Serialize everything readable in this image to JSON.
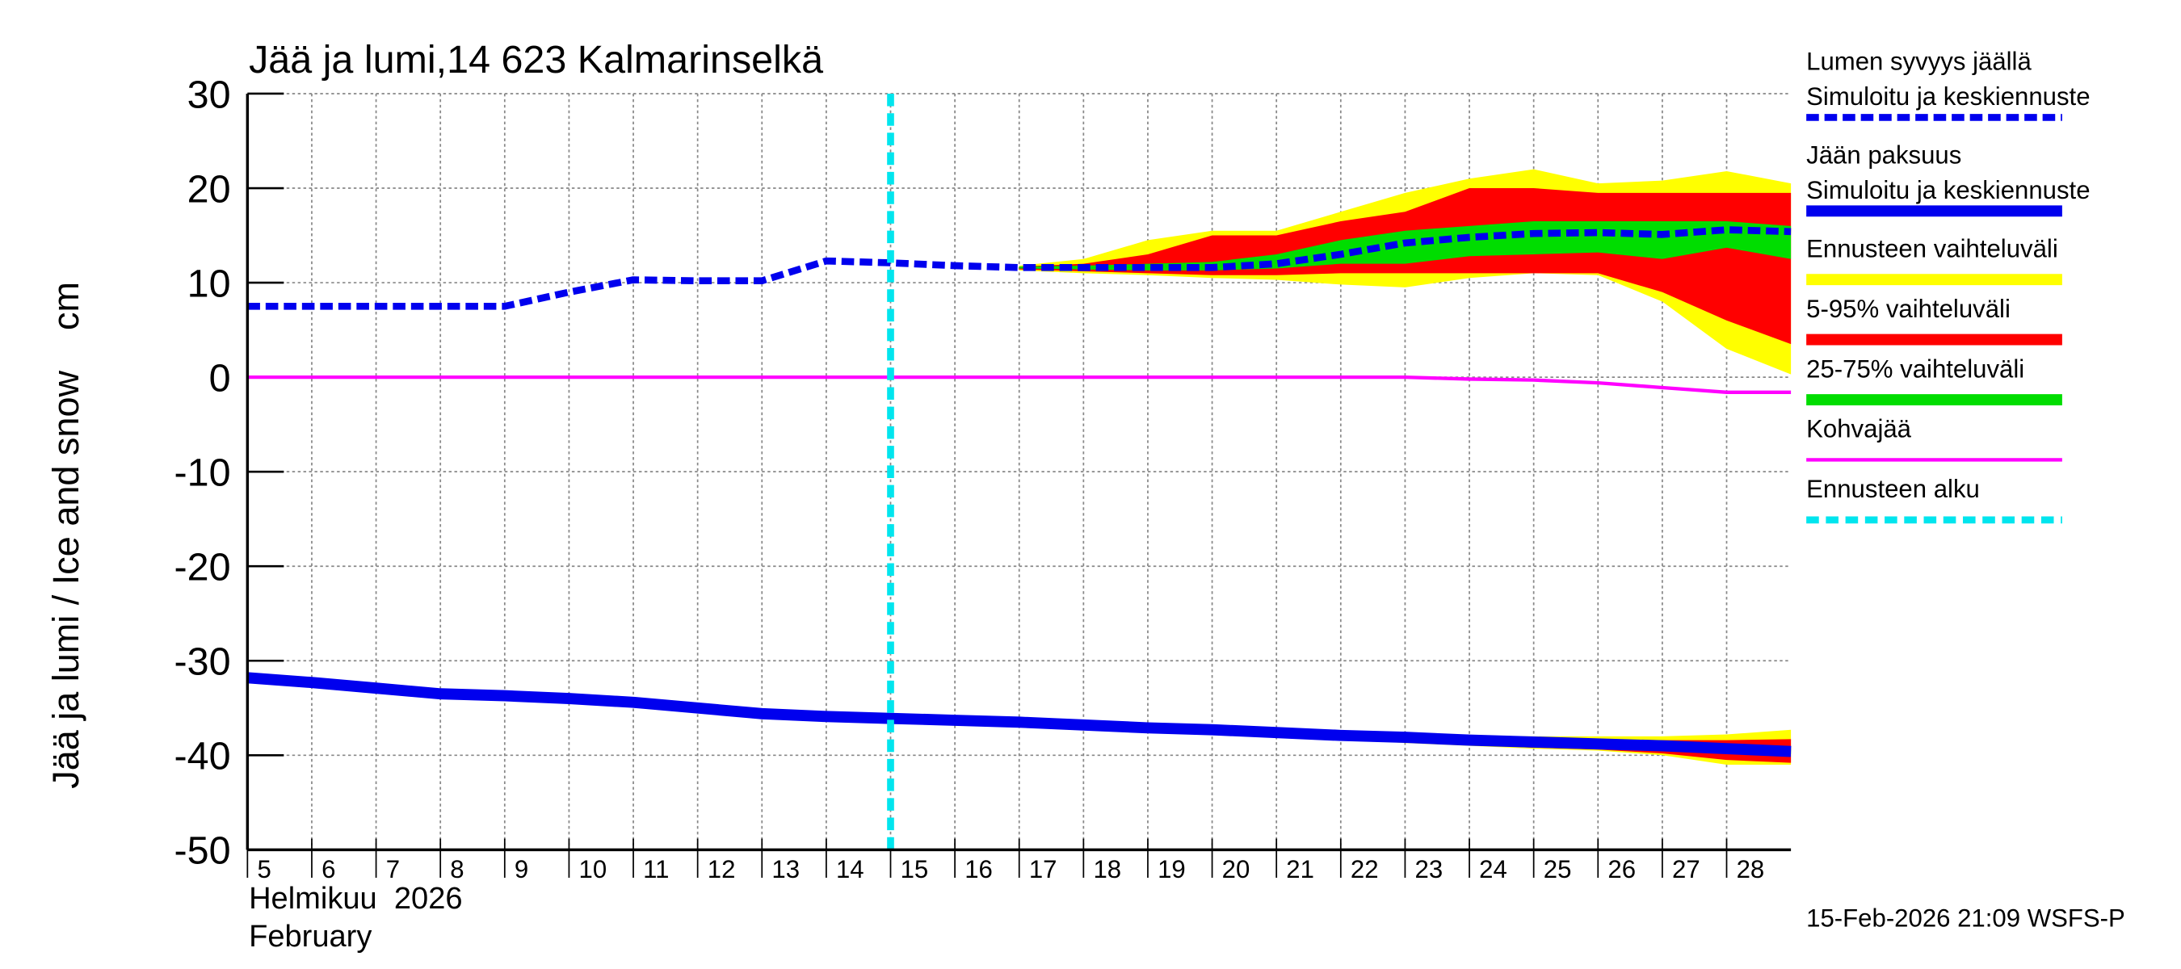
{
  "chart_data": {
    "type": "line",
    "title": "Jää ja lumi,14 623 Kalmarinselkä",
    "ylabel": "Jää ja lumi / Ice and snow    cm",
    "xlabel": [
      "Helmikuu  2026",
      "February"
    ],
    "footer": "15-Feb-2026 21:09 WSFS-P",
    "xlim": [
      5,
      29
    ],
    "xticks": [
      5,
      6,
      7,
      8,
      9,
      10,
      11,
      12,
      13,
      14,
      15,
      16,
      17,
      18,
      19,
      20,
      21,
      22,
      23,
      24,
      25,
      26,
      27,
      28
    ],
    "ylim": [
      -50,
      30
    ],
    "yticks": [
      -50,
      -40,
      -30,
      -20,
      -10,
      0,
      10,
      20,
      30
    ],
    "grid": true,
    "x": [
      5,
      6,
      7,
      8,
      9,
      10,
      11,
      12,
      13,
      14,
      15,
      16,
      17,
      18,
      19,
      20,
      21,
      22,
      23,
      24,
      25,
      26,
      27,
      28,
      29
    ],
    "bands": [
      {
        "name": "Ennusteen vaihteluväli",
        "color": "#ffff00",
        "snow_low": [
          null,
          null,
          null,
          null,
          null,
          null,
          null,
          null,
          null,
          null,
          null,
          null,
          11.3,
          11,
          10.8,
          10.5,
          10.3,
          9.8,
          9.5,
          10.5,
          11,
          10.8,
          8,
          3,
          0.3
        ],
        "snow_high": [
          null,
          null,
          null,
          null,
          null,
          null,
          null,
          null,
          null,
          null,
          null,
          null,
          11.8,
          12.5,
          14.5,
          15.5,
          15.5,
          17.5,
          19.5,
          21,
          22,
          20.5,
          20.8,
          21.8,
          20.5
        ],
        "ice_low": [
          null,
          null,
          null,
          null,
          null,
          null,
          null,
          null,
          null,
          null,
          null,
          null,
          null,
          null,
          null,
          null,
          -37.6,
          -38.3,
          -38.7,
          -39,
          -39.3,
          -39.5,
          -40,
          -41,
          -41
        ],
        "ice_high": [
          null,
          null,
          null,
          null,
          null,
          null,
          null,
          null,
          null,
          null,
          null,
          null,
          null,
          null,
          null,
          null,
          -37.5,
          -37.7,
          -37.8,
          -37.9,
          -38,
          -38,
          -38,
          -37.8,
          -37.3
        ]
      },
      {
        "name": "5-95% vaihteluväli",
        "color": "#ff0000",
        "snow_low": [
          null,
          null,
          null,
          null,
          null,
          null,
          null,
          null,
          null,
          null,
          null,
          null,
          11.4,
          11.2,
          11,
          10.8,
          10.8,
          11,
          11,
          11,
          11,
          11,
          9,
          6,
          3.5
        ],
        "snow_high": [
          null,
          null,
          null,
          null,
          null,
          null,
          null,
          null,
          null,
          null,
          null,
          null,
          11.7,
          12,
          13,
          15,
          15,
          16.5,
          17.5,
          20,
          20,
          19.5,
          19.5,
          19.5,
          19.5
        ],
        "ice_low": [
          null,
          null,
          null,
          null,
          null,
          null,
          null,
          null,
          null,
          null,
          null,
          null,
          null,
          null,
          null,
          null,
          -37.6,
          -38.2,
          -38.6,
          -38.9,
          -39.2,
          -39.4,
          -39.8,
          -40.5,
          -40.8
        ],
        "ice_high": [
          null,
          null,
          null,
          null,
          null,
          null,
          null,
          null,
          null,
          null,
          null,
          null,
          null,
          null,
          null,
          null,
          -37.5,
          -37.8,
          -37.9,
          -38.1,
          -38.2,
          -38.3,
          -38.4,
          -38.4,
          -38.3
        ]
      },
      {
        "name": "25-75% vaihteluväli",
        "color": "#00dd00",
        "snow_low": [
          null,
          null,
          null,
          null,
          null,
          null,
          null,
          null,
          null,
          null,
          null,
          null,
          11.5,
          11.4,
          11.3,
          11.3,
          11.5,
          12,
          12,
          12.8,
          13,
          13.2,
          12.5,
          13.7,
          12.5
        ],
        "snow_high": [
          null,
          null,
          null,
          null,
          null,
          null,
          null,
          null,
          null,
          null,
          null,
          null,
          11.7,
          11.8,
          12,
          12.2,
          13,
          14.5,
          15.5,
          16,
          16.5,
          16.5,
          16.5,
          16.5,
          16
        ],
        "ice_low": [
          null,
          null,
          null,
          null,
          null,
          null,
          null,
          null,
          null,
          null,
          null,
          null,
          null,
          null,
          null,
          null,
          -37.7,
          -38,
          -38.3,
          -38.6,
          -38.8,
          -39,
          -39.3,
          -39.6,
          -39.9
        ],
        "ice_high": [
          null,
          null,
          null,
          null,
          null,
          null,
          null,
          null,
          null,
          null,
          null,
          null,
          null,
          null,
          null,
          null,
          -37.5,
          -37.8,
          -37.9,
          -38.2,
          -38.4,
          -38.6,
          -38.7,
          -39,
          -39.3
        ]
      }
    ],
    "series": [
      {
        "name": "Lumen syvyys jäällä",
        "note": "Simuloitu ja keskiennuste",
        "color": "#0000ee",
        "style": "dashed",
        "values": [
          7.5,
          7.5,
          7.5,
          7.5,
          7.5,
          9,
          10.3,
          10.2,
          10.2,
          12.3,
          12.1,
          11.8,
          11.6,
          11.6,
          11.6,
          11.6,
          12,
          13,
          14.2,
          14.8,
          15.2,
          15.3,
          15.1,
          15.6,
          15.4
        ]
      },
      {
        "name": "Jään paksuus",
        "note": "Simuloitu ja keskiennuste",
        "color": "#0000ee",
        "style": "solid",
        "values": [
          -31.8,
          -32.3,
          -32.9,
          -33.5,
          -33.7,
          -34,
          -34.4,
          -35,
          -35.6,
          -35.9,
          -36.1,
          -36.3,
          -36.5,
          -36.8,
          -37.1,
          -37.3,
          -37.6,
          -37.9,
          -38.1,
          -38.4,
          -38.6,
          -38.8,
          -39,
          -39.3,
          -39.6
        ]
      },
      {
        "name": "Kohvajää",
        "color": "#ff00ff",
        "style": "thin",
        "values": [
          0,
          0,
          0,
          0,
          0,
          0,
          0,
          0,
          0,
          0,
          0,
          0,
          0,
          0,
          0,
          0,
          0,
          0,
          0,
          -0.2,
          -0.3,
          -0.6,
          -1.1,
          -1.6,
          -1.6
        ]
      }
    ],
    "forecast_start": {
      "name": "Ennusteen alku",
      "x": 15,
      "color": "#00e5ee"
    }
  }
}
